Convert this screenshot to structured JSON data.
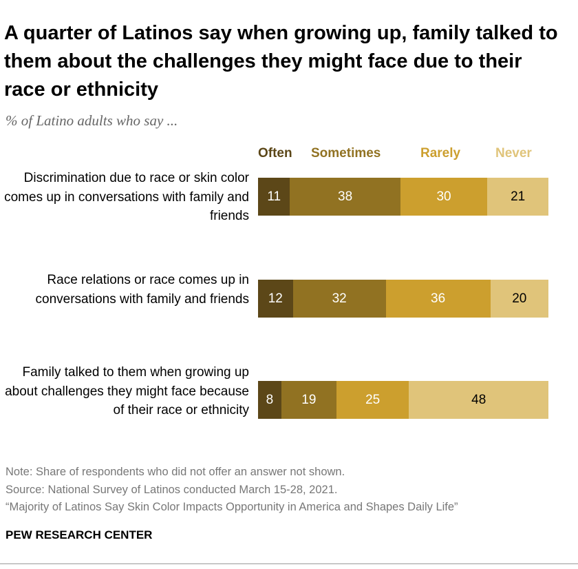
{
  "title": "A quarter of Latinos say when growing up, family talked to them about the challenges they might face due to their race or ethnicity",
  "subtitle": "% of Latino adults who say ...",
  "chart_data": {
    "type": "bar",
    "orientation": "horizontal-stacked",
    "categories": [
      "Discrimination due to race or skin color comes up in conversations with family and friends",
      "Race relations or race comes up in conversations with family and friends",
      "Family talked to them when growing up about challenges they might face because of their race or ethnicity"
    ],
    "series": [
      {
        "name": "Often",
        "color": "#5c4718",
        "label_color": "#ffffff",
        "values": [
          11,
          12,
          8
        ]
      },
      {
        "name": "Sometimes",
        "color": "#917222",
        "label_color": "#ffffff",
        "values": [
          38,
          32,
          19
        ]
      },
      {
        "name": "Rarely",
        "color": "#cc9f2e",
        "label_color": "#ffffff",
        "values": [
          30,
          36,
          25
        ]
      },
      {
        "name": "Never",
        "color": "#e0c47a",
        "label_color": "#000000",
        "values": [
          21,
          20,
          48
        ]
      }
    ],
    "xlim": [
      0,
      100
    ],
    "legend": "top"
  },
  "notes": [
    "Note: Share of respondents who did not offer an answer not shown.",
    "Source: National Survey of Latinos conducted March 15-28, 2021.",
    "“Majority of Latinos Say Skin Color Impacts Opportunity in America and Shapes Daily Life”"
  ],
  "source_org": "PEW RESEARCH CENTER"
}
